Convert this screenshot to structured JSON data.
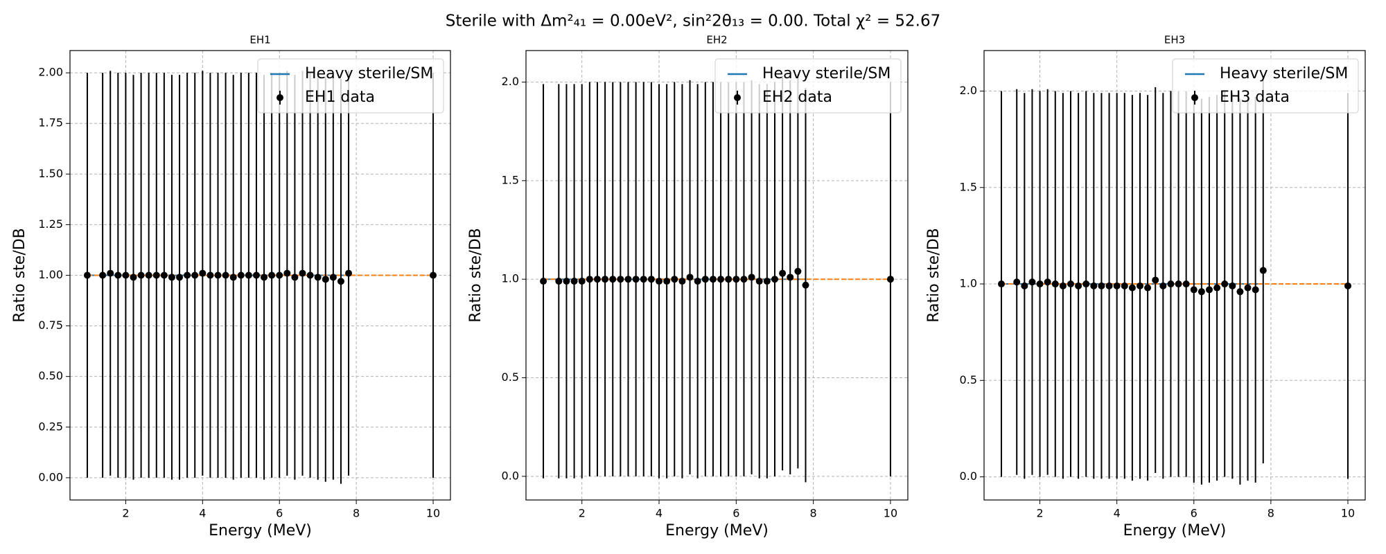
{
  "title": "Sterile with Δm²₄₁ = 0.00eV², sin²2θ₁₃ = 0.00. Total χ² = 52.67",
  "chart_data": [
    {
      "type": "errorbar",
      "title": "EH1",
      "xlabel": "Energy (MeV)",
      "ylabel": "Ratio ste/DB",
      "x": [
        1.0,
        1.4,
        1.6,
        1.8,
        2.0,
        2.2,
        2.4,
        2.6,
        2.8,
        3.0,
        3.2,
        3.4,
        3.6,
        3.8,
        4.0,
        4.2,
        4.4,
        4.6,
        4.8,
        5.0,
        5.2,
        5.4,
        5.6,
        5.8,
        6.0,
        6.2,
        6.4,
        6.6,
        6.8,
        7.0,
        7.2,
        7.4,
        7.6,
        7.8,
        10.0
      ],
      "series": [
        {
          "name": "Heavy sterile/SM",
          "color": "#1f77b4",
          "values": [
            1,
            1,
            1,
            1,
            1,
            1,
            1,
            1,
            1,
            1,
            1,
            1,
            1,
            1,
            1,
            1,
            1,
            1,
            1,
            1,
            1,
            1,
            1,
            1,
            1,
            1,
            1,
            1,
            1,
            1,
            1,
            1,
            1,
            1,
            null
          ]
        },
        {
          "color": "#ff7f0e",
          "dashed": true,
          "values": [
            1,
            1,
            1,
            1,
            1,
            1,
            1,
            1,
            1,
            1,
            1,
            1,
            1,
            1,
            1,
            1,
            1,
            1,
            1,
            1,
            1,
            1,
            1,
            1,
            1,
            1,
            1,
            1,
            1,
            1,
            1,
            1,
            1,
            1,
            1
          ]
        },
        {
          "name": "EH1 data",
          "color": "#000000",
          "values": [
            1.0,
            1.0,
            1.01,
            1.0,
            1.0,
            0.99,
            1.0,
            1.0,
            1.0,
            1.0,
            0.99,
            0.99,
            1.0,
            1.0,
            1.01,
            1.0,
            1.0,
            1.0,
            0.99,
            1.0,
            1.0,
            1.0,
            0.99,
            1.0,
            1.0,
            1.01,
            0.99,
            1.01,
            1.0,
            0.99,
            0.98,
            0.99,
            0.97,
            1.01,
            1.0
          ],
          "errors": [
            1,
            1,
            1,
            1,
            1,
            1,
            1,
            1,
            1,
            1,
            1,
            1,
            1,
            1,
            1,
            1,
            1,
            1,
            1,
            1,
            1,
            1,
            1,
            1,
            1,
            1,
            1,
            1,
            1,
            1,
            1,
            1,
            1,
            1,
            1
          ]
        }
      ],
      "xlim": [
        0.55,
        10.45
      ],
      "ylim": [
        -0.11,
        2.11
      ],
      "xticks": [
        2,
        4,
        6,
        8,
        10
      ],
      "yticks": [
        {
          "value": 0,
          "label": "0.00"
        },
        0.25,
        {
          "value": 0.5,
          "label": "0.50"
        },
        0.75,
        {
          "value": 1,
          "label": "1.00"
        },
        1.25,
        {
          "value": 1.5,
          "label": "1.50"
        },
        1.75,
        {
          "value": 2,
          "label": "2.00"
        }
      ],
      "grid": true,
      "legend": "upper right"
    },
    {
      "type": "errorbar",
      "title": "EH2",
      "xlabel": "Energy (MeV)",
      "ylabel": "Ratio ste/DB",
      "x": [
        1.0,
        1.4,
        1.6,
        1.8,
        2.0,
        2.2,
        2.4,
        2.6,
        2.8,
        3.0,
        3.2,
        3.4,
        3.6,
        3.8,
        4.0,
        4.2,
        4.4,
        4.6,
        4.8,
        5.0,
        5.2,
        5.4,
        5.6,
        5.8,
        6.0,
        6.2,
        6.4,
        6.6,
        6.8,
        7.0,
        7.2,
        7.4,
        7.6,
        7.8,
        10.0
      ],
      "series": [
        {
          "name": "Heavy sterile/SM",
          "color": "#1f77b4",
          "values": [
            1,
            1,
            1,
            1,
            1,
            1,
            1,
            1,
            1,
            1,
            1,
            1,
            1,
            1,
            1,
            1,
            1,
            1,
            1,
            1,
            1,
            1,
            1,
            1,
            1,
            1,
            1,
            1,
            1,
            1,
            1,
            1,
            1,
            1,
            null
          ]
        },
        {
          "color": "#ff7f0e",
          "dashed": true,
          "values": [
            1,
            1,
            1,
            1,
            1,
            1,
            1,
            1,
            1,
            1,
            1,
            1,
            1,
            1,
            1,
            1,
            1,
            1,
            1,
            1,
            1,
            1,
            1,
            1,
            1,
            1,
            1,
            1,
            1,
            1,
            1,
            1,
            1,
            1,
            1
          ]
        },
        {
          "name": "EH2 data",
          "color": "#000000",
          "values": [
            0.99,
            0.99,
            0.99,
            0.99,
            0.99,
            1.0,
            1.0,
            1.0,
            1.0,
            1.0,
            1.0,
            1.0,
            1.0,
            1.0,
            0.99,
            0.99,
            1.0,
            0.99,
            1.01,
            0.99,
            1.0,
            1.0,
            1.0,
            1.0,
            1.0,
            1.0,
            1.01,
            0.99,
            0.99,
            1.0,
            1.03,
            1.01,
            1.04,
            0.97,
            1.0
          ],
          "errors": [
            1,
            1,
            1,
            1,
            1,
            1,
            1,
            1,
            1,
            1,
            1,
            1,
            1,
            1,
            1,
            1,
            1,
            1,
            1,
            1,
            1,
            1,
            1,
            1,
            1,
            1,
            1,
            1,
            1,
            1,
            1,
            1,
            1,
            1,
            1
          ]
        }
      ],
      "xlim": [
        0.55,
        10.45
      ],
      "ylim": [
        -0.12,
        2.16
      ],
      "xticks": [
        2,
        4,
        6,
        8,
        10
      ],
      "yticks": [
        {
          "value": 0,
          "label": "0.0"
        },
        0.5,
        {
          "value": 1,
          "label": "1.0"
        },
        1.5,
        {
          "value": 2,
          "label": "2.0"
        }
      ],
      "grid": true,
      "legend": "upper right"
    },
    {
      "type": "errorbar",
      "title": "EH3",
      "xlabel": "Energy (MeV)",
      "ylabel": "Ratio ste/DB",
      "x": [
        1.0,
        1.4,
        1.6,
        1.8,
        2.0,
        2.2,
        2.4,
        2.6,
        2.8,
        3.0,
        3.2,
        3.4,
        3.6,
        3.8,
        4.0,
        4.2,
        4.4,
        4.6,
        4.8,
        5.0,
        5.2,
        5.4,
        5.6,
        5.8,
        6.0,
        6.2,
        6.4,
        6.6,
        6.8,
        7.0,
        7.2,
        7.4,
        7.6,
        7.8,
        10.0
      ],
      "series": [
        {
          "name": "Heavy sterile/SM",
          "color": "#1f77b4",
          "values": [
            1,
            1,
            1,
            1,
            1,
            1,
            1,
            1,
            1,
            1,
            1,
            1,
            1,
            1,
            1,
            1,
            1,
            1,
            1,
            1,
            1,
            1,
            1,
            1,
            1,
            1,
            1,
            1,
            1,
            1,
            1,
            1,
            1,
            1,
            null
          ]
        },
        {
          "color": "#ff7f0e",
          "dashed": true,
          "values": [
            1,
            1,
            1,
            1,
            1,
            1,
            1,
            1,
            1,
            1,
            1,
            1,
            1,
            1,
            1,
            1,
            1,
            1,
            1,
            1,
            1,
            1,
            1,
            1,
            1,
            1,
            1,
            1,
            1,
            1,
            1,
            1,
            1,
            1,
            1
          ]
        },
        {
          "name": "EH3 data",
          "color": "#000000",
          "values": [
            1.0,
            1.01,
            0.99,
            1.01,
            1.0,
            1.01,
            1.0,
            0.99,
            1.0,
            0.99,
            1.0,
            0.99,
            0.99,
            0.99,
            0.99,
            0.99,
            0.98,
            0.99,
            0.98,
            1.02,
            0.99,
            1.0,
            1.0,
            1.0,
            0.97,
            0.96,
            0.97,
            0.98,
            1.0,
            0.99,
            0.96,
            0.98,
            0.97,
            1.07,
            0.99
          ],
          "errors": [
            1,
            1,
            1,
            1,
            1,
            1,
            1,
            1,
            1,
            1,
            1,
            1,
            1,
            1,
            1,
            1,
            1,
            1,
            1,
            1,
            1,
            1,
            1,
            1,
            1,
            1,
            1,
            1,
            1,
            1,
            1,
            1,
            1,
            1,
            1
          ]
        }
      ],
      "xlim": [
        0.55,
        10.45
      ],
      "ylim": [
        -0.12,
        2.21
      ],
      "xticks": [
        2,
        4,
        6,
        8,
        10
      ],
      "yticks": [
        {
          "value": 0,
          "label": "0.0"
        },
        0.5,
        {
          "value": 1,
          "label": "1.0"
        },
        1.5,
        {
          "value": 2,
          "label": "2.0"
        }
      ],
      "grid": true,
      "legend": "upper right"
    }
  ]
}
